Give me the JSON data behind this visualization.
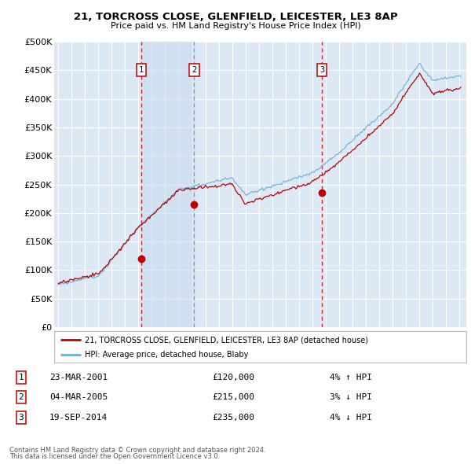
{
  "title_line1": "21, TORCROSS CLOSE, GLENFIELD, LEICESTER, LE3 8AP",
  "title_line2": "Price paid vs. HM Land Registry's House Price Index (HPI)",
  "ylabel_ticks": [
    "£0",
    "£50K",
    "£100K",
    "£150K",
    "£200K",
    "£250K",
    "£300K",
    "£350K",
    "£400K",
    "£450K",
    "£500K"
  ],
  "ytick_values": [
    0,
    50000,
    100000,
    150000,
    200000,
    250000,
    300000,
    350000,
    400000,
    450000,
    500000
  ],
  "xlim_start": 1994.7,
  "xlim_end": 2025.5,
  "ylim_min": 0,
  "ylim_max": 500000,
  "plot_bg_color": "#dce9f5",
  "grid_color": "#ffffff",
  "hpi_color": "#6baed6",
  "price_color": "#c00000",
  "transactions": [
    {
      "num": 1,
      "date_decimal": 2001.23,
      "price": 120000,
      "label": "23-MAR-2001",
      "price_str": "£120,000",
      "pct": "4%",
      "dir": "↑",
      "line_color": "#c00000",
      "line_style": "--"
    },
    {
      "num": 2,
      "date_decimal": 2005.17,
      "price": 215000,
      "label": "04-MAR-2005",
      "price_str": "£215,000",
      "pct": "3%",
      "dir": "↓",
      "line_color": "#888888",
      "line_style": "--"
    },
    {
      "num": 3,
      "date_decimal": 2014.72,
      "price": 235000,
      "label": "19-SEP-2014",
      "price_str": "£235,000",
      "pct": "4%",
      "dir": "↓",
      "line_color": "#c00000",
      "line_style": "--"
    }
  ],
  "shade_between": [
    1,
    2
  ],
  "shade_color": "#c8d8ee",
  "legend_label_price": "21, TORCROSS CLOSE, GLENFIELD, LEICESTER, LE3 8AP (detached house)",
  "legend_label_hpi": "HPI: Average price, detached house, Blaby",
  "footer_line1": "Contains HM Land Registry data © Crown copyright and database right 2024.",
  "footer_line2": "This data is licensed under the Open Government Licence v3.0."
}
